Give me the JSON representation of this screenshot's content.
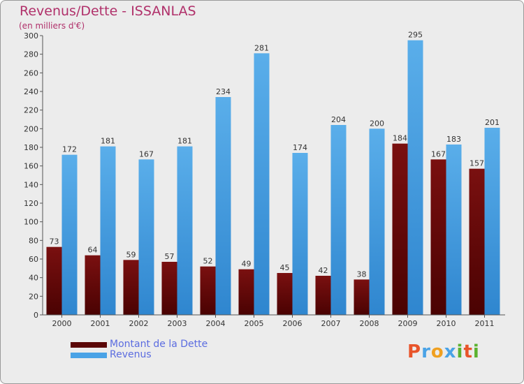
{
  "header": {
    "title": "Revenus/Dette - ISSANLAS",
    "subtitle": "(en milliers d'€)"
  },
  "colors": {
    "debt": "#7a0a0a",
    "revenue": "#4aa3e6",
    "text_accent": "#b0306a",
    "legend_text": "#5b6ce0"
  },
  "chart_data": {
    "type": "bar",
    "title": "Revenus/Dette - ISSANLAS",
    "subtitle": "(en milliers d'€)",
    "categories": [
      "2000",
      "2001",
      "2002",
      "2003",
      "2004",
      "2005",
      "2006",
      "2007",
      "2008",
      "2009",
      "2010",
      "2011"
    ],
    "series": [
      {
        "name": "Montant de la Dette",
        "values": [
          73,
          64,
          59,
          57,
          52,
          49,
          45,
          42,
          38,
          184,
          167,
          157
        ]
      },
      {
        "name": "Revenus",
        "values": [
          172,
          181,
          167,
          181,
          234,
          281,
          174,
          204,
          200,
          295,
          183,
          201
        ]
      }
    ],
    "ylim": [
      0,
      300
    ],
    "yticks": [
      0,
      20,
      40,
      60,
      80,
      100,
      120,
      140,
      160,
      180,
      200,
      220,
      240,
      260,
      280,
      300
    ],
    "grid": false,
    "legend_position": "bottom-left"
  },
  "legend": {
    "items": [
      {
        "label": "Montant de la Dette"
      },
      {
        "label": "Revenus"
      }
    ]
  },
  "logo": {
    "letters": [
      "P",
      "r",
      "o",
      "x",
      "i",
      "t",
      "i"
    ],
    "colors": [
      "#e8542a",
      "#4aa3e6",
      "#f0a020",
      "#4aa3e6",
      "#5bb230",
      "#e8542a",
      "#5bb230"
    ]
  }
}
